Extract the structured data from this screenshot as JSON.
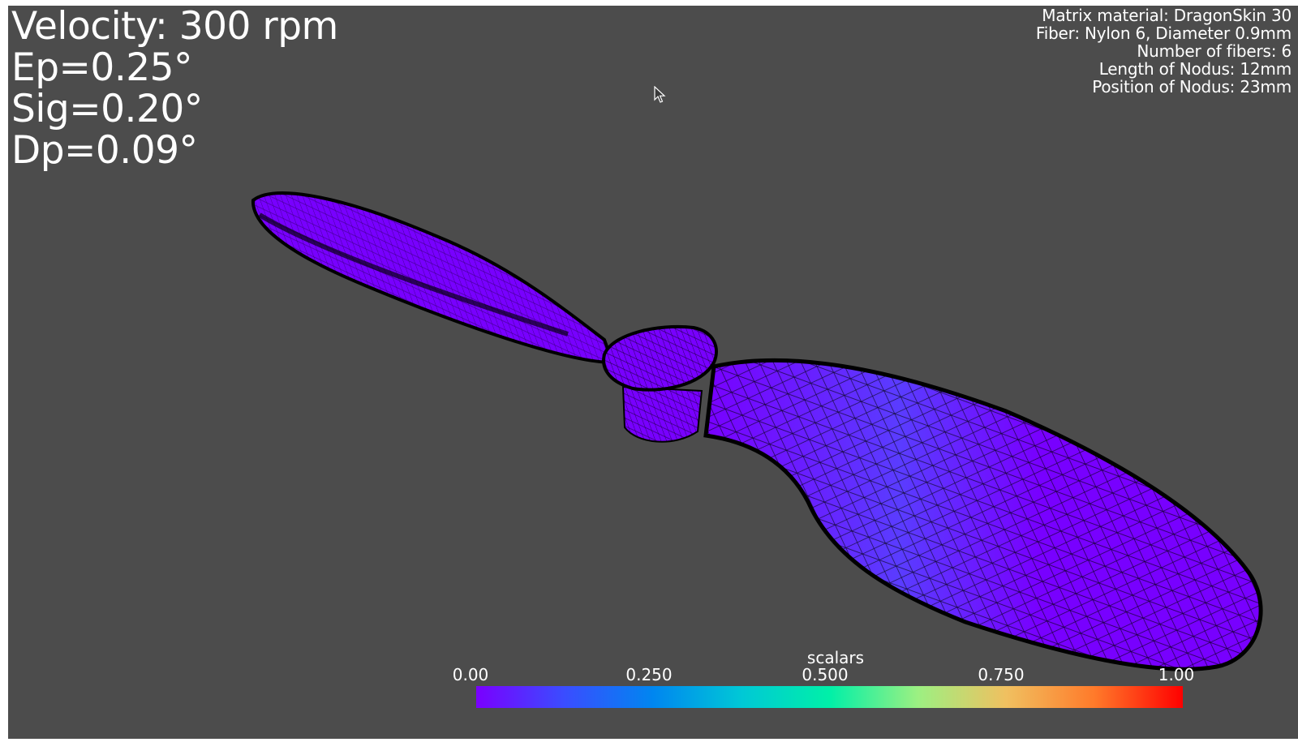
{
  "hud": {
    "velocity": "Velocity: 300 rpm",
    "ep": "Ep=0.25°",
    "sig": "Sig=0.20°",
    "dp": "Dp=0.09°"
  },
  "info": {
    "matrix_material": "Matrix material: DragonSkin 30",
    "fiber": "Fiber: Nylon 6, Diameter 0.9mm",
    "number_of_fibers": "Number of fibers: 6",
    "nodus_length": "Length of Nodus: 12mm",
    "nodus_position": "Position of Nodus: 23mm"
  },
  "colorbar": {
    "title": "scalars",
    "ticks": [
      "0.00",
      "0.250",
      "0.500",
      "0.750",
      "1.00"
    ],
    "colors": [
      "#7a00ff",
      "#3a4dff",
      "#0086f0",
      "#00c8d6",
      "#00f0a8",
      "#9cf082",
      "#f0c060",
      "#ff7a2a",
      "#ff0000"
    ]
  },
  "colors": {
    "background": "#4c4c4c",
    "mesh_fill": "#7800ff",
    "mesh_lines": "#000000"
  }
}
